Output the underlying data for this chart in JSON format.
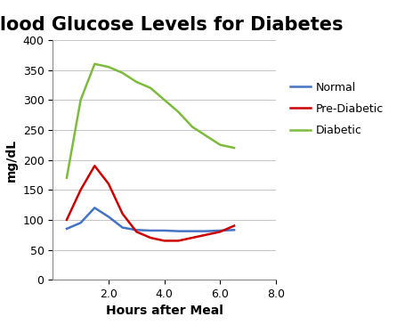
{
  "title": "Blood Glucose Levels for Diabetes",
  "xlabel": "Hours after Meal",
  "ylabel": "mg/dL",
  "xlim": [
    0,
    8.0
  ],
  "ylim": [
    0,
    400
  ],
  "xticks": [
    2.0,
    4.0,
    6.0,
    8.0
  ],
  "yticks": [
    0,
    50,
    100,
    150,
    200,
    250,
    300,
    350,
    400
  ],
  "normal": {
    "x": [
      0.5,
      1.0,
      1.5,
      2.0,
      2.5,
      3.0,
      3.5,
      4.0,
      4.5,
      5.0,
      5.5,
      6.0,
      6.5
    ],
    "y": [
      85,
      95,
      120,
      105,
      87,
      83,
      82,
      82,
      81,
      81,
      81,
      82,
      83
    ],
    "color": "#4472C4",
    "label": "Normal"
  },
  "prediabetic": {
    "x": [
      0.5,
      1.0,
      1.5,
      2.0,
      2.5,
      3.0,
      3.5,
      4.0,
      4.5,
      5.0,
      5.5,
      6.0,
      6.5
    ],
    "y": [
      100,
      150,
      190,
      160,
      110,
      80,
      70,
      65,
      65,
      70,
      75,
      80,
      90
    ],
    "color": "#CC0000",
    "label": "Pre-Diabetic"
  },
  "diabetic": {
    "x": [
      0.5,
      1.0,
      1.5,
      2.0,
      2.5,
      3.0,
      3.5,
      4.0,
      4.5,
      5.0,
      5.5,
      6.0,
      6.5
    ],
    "y": [
      170,
      300,
      360,
      355,
      345,
      330,
      320,
      300,
      280,
      255,
      240,
      225,
      220
    ],
    "color": "#7CBB3C",
    "label": "Diabetic"
  },
  "title_fontsize": 15,
  "axis_label_fontsize": 10,
  "tick_fontsize": 9,
  "legend_fontsize": 9,
  "background_color": "#FFFFFF",
  "grid_color": "#BBBBBB",
  "line_width": 1.8
}
